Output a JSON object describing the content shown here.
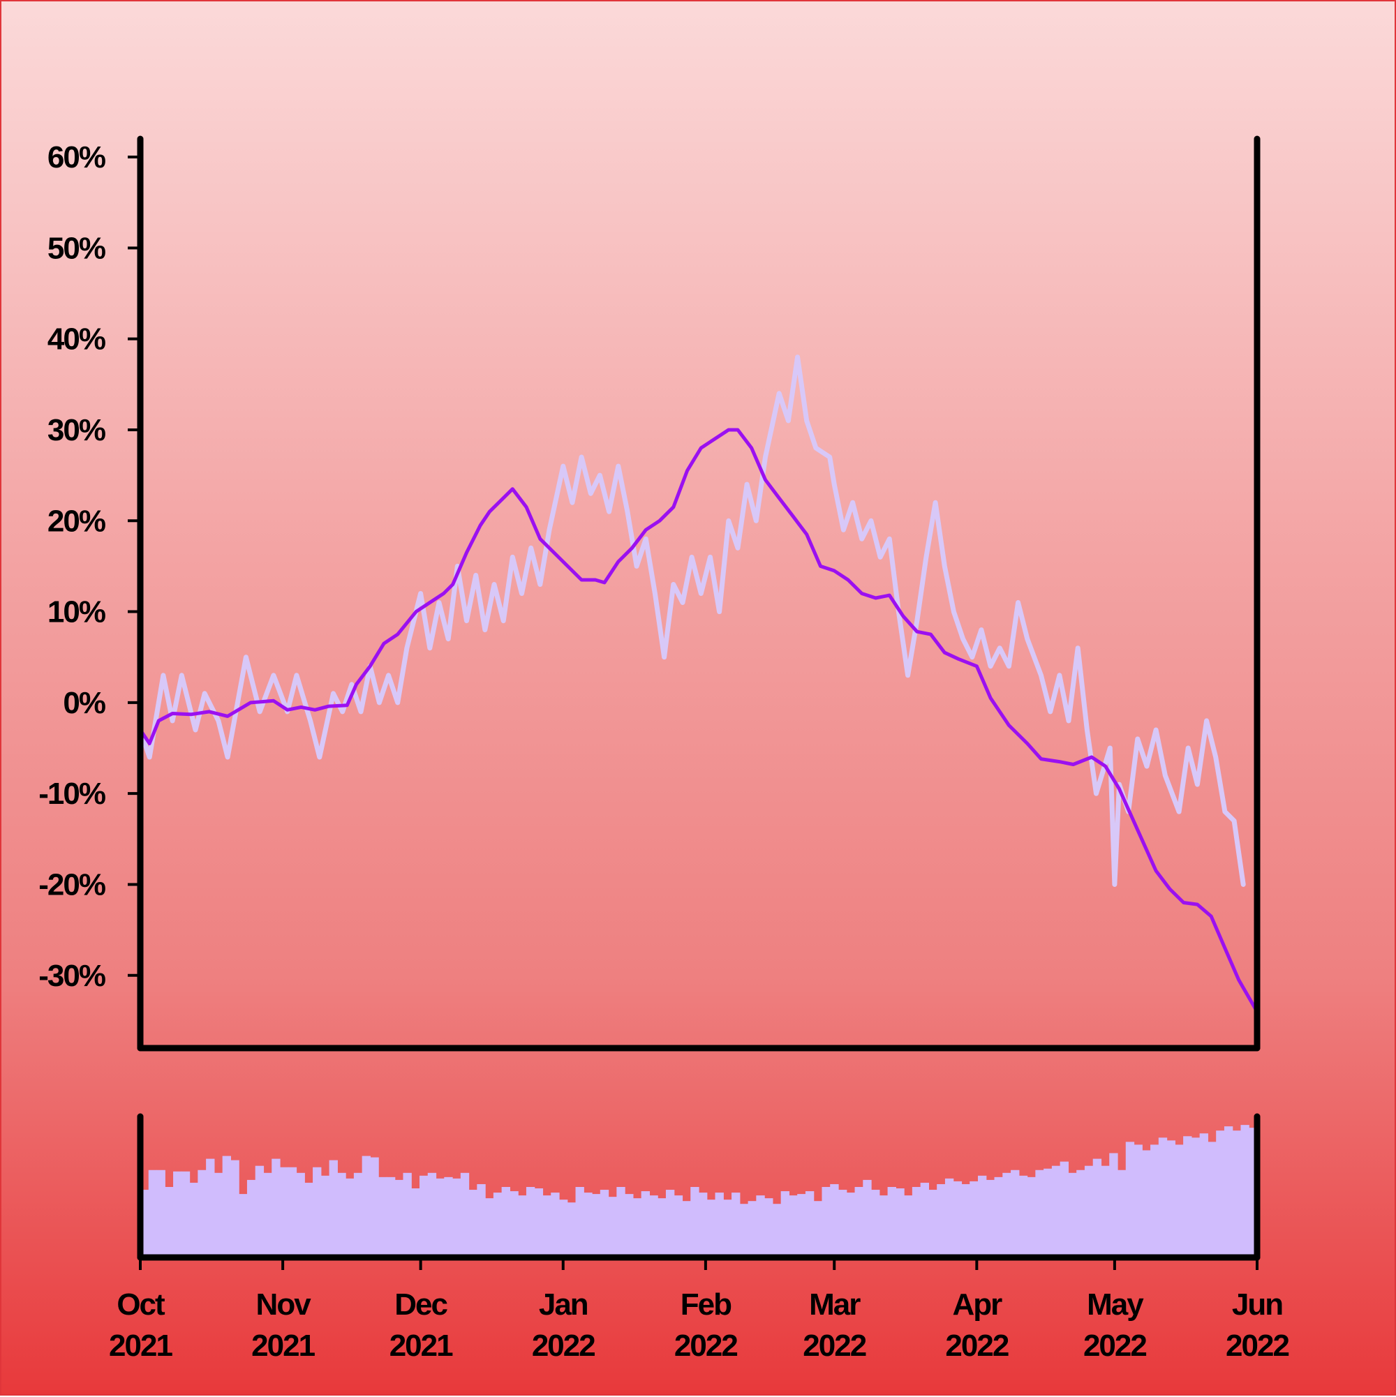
{
  "chart_data": {
    "type": "line",
    "title": "",
    "xlabel": "",
    "ylabel": "",
    "x_range": [
      "2021-10-01",
      "2022-06-01"
    ],
    "ylim": [
      -38,
      62
    ],
    "y_ticks": [
      {
        "value": 60,
        "label": "60%"
      },
      {
        "value": 50,
        "label": "50%"
      },
      {
        "value": 40,
        "label": "40%"
      },
      {
        "value": 30,
        "label": "30%"
      },
      {
        "value": 20,
        "label": "20%"
      },
      {
        "value": 10,
        "label": "10%"
      },
      {
        "value": 0,
        "label": "0%"
      },
      {
        "value": -10,
        "label": "-10%"
      },
      {
        "value": -20,
        "label": "-20%"
      },
      {
        "value": -30,
        "label": "-30%"
      }
    ],
    "x_ticks": [
      {
        "date": "2021-10-01",
        "month": "Oct",
        "year": "2021"
      },
      {
        "date": "2021-11-01",
        "month": "Nov",
        "year": "2021"
      },
      {
        "date": "2021-12-01",
        "month": "Dec",
        "year": "2021"
      },
      {
        "date": "2022-01-01",
        "month": "Jan",
        "year": "2022"
      },
      {
        "date": "2022-02-01",
        "month": "Feb",
        "year": "2022"
      },
      {
        "date": "2022-03-01",
        "month": "Mar",
        "year": "2022"
      },
      {
        "date": "2022-04-01",
        "month": "Apr",
        "year": "2022"
      },
      {
        "date": "2022-05-01",
        "month": "May",
        "year": "2022"
      },
      {
        "date": "2022-06-01",
        "month": "Jun",
        "year": "2022"
      }
    ],
    "series": [
      {
        "color": "#d8c8f8",
        "points": [
          [
            "2021-10-01",
            -3
          ],
          [
            "2021-10-03",
            -6
          ],
          [
            "2021-10-06",
            3
          ],
          [
            "2021-10-08",
            -2
          ],
          [
            "2021-10-10",
            3
          ],
          [
            "2021-10-13",
            -3
          ],
          [
            "2021-10-15",
            1
          ],
          [
            "2021-10-18",
            -2
          ],
          [
            "2021-10-20",
            -6
          ],
          [
            "2021-10-24",
            5
          ],
          [
            "2021-10-27",
            -1
          ],
          [
            "2021-10-30",
            3
          ],
          [
            "2021-11-02",
            -1
          ],
          [
            "2021-11-04",
            3
          ],
          [
            "2021-11-07",
            -2
          ],
          [
            "2021-11-09",
            -6
          ],
          [
            "2021-11-12",
            1
          ],
          [
            "2021-11-14",
            -1
          ],
          [
            "2021-11-16",
            2
          ],
          [
            "2021-11-18",
            -1
          ],
          [
            "2021-11-20",
            4
          ],
          [
            "2021-11-22",
            0
          ],
          [
            "2021-11-24",
            3
          ],
          [
            "2021-11-26",
            0
          ],
          [
            "2021-11-28",
            6
          ],
          [
            "2021-12-01",
            12
          ],
          [
            "2021-12-03",
            6
          ],
          [
            "2021-12-05",
            11
          ],
          [
            "2021-12-07",
            7
          ],
          [
            "2021-12-09",
            15
          ],
          [
            "2021-12-11",
            9
          ],
          [
            "2021-12-13",
            14
          ],
          [
            "2021-12-15",
            8
          ],
          [
            "2021-12-17",
            13
          ],
          [
            "2021-12-19",
            9
          ],
          [
            "2021-12-21",
            16
          ],
          [
            "2021-12-23",
            12
          ],
          [
            "2021-12-25",
            17
          ],
          [
            "2021-12-27",
            13
          ],
          [
            "2021-12-29",
            19
          ],
          [
            "2022-01-01",
            26
          ],
          [
            "2022-01-03",
            22
          ],
          [
            "2022-01-05",
            27
          ],
          [
            "2022-01-07",
            23
          ],
          [
            "2022-01-09",
            25
          ],
          [
            "2022-01-11",
            21
          ],
          [
            "2022-01-13",
            26
          ],
          [
            "2022-01-15",
            21
          ],
          [
            "2022-01-17",
            15
          ],
          [
            "2022-01-19",
            18
          ],
          [
            "2022-01-21",
            12
          ],
          [
            "2022-01-23",
            5
          ],
          [
            "2022-01-25",
            13
          ],
          [
            "2022-01-27",
            11
          ],
          [
            "2022-01-29",
            16
          ],
          [
            "2022-01-31",
            12
          ],
          [
            "2022-02-02",
            16
          ],
          [
            "2022-02-04",
            10
          ],
          [
            "2022-02-06",
            20
          ],
          [
            "2022-02-08",
            17
          ],
          [
            "2022-02-10",
            24
          ],
          [
            "2022-02-12",
            20
          ],
          [
            "2022-02-14",
            27
          ],
          [
            "2022-02-17",
            34
          ],
          [
            "2022-02-19",
            31
          ],
          [
            "2022-02-21",
            38
          ],
          [
            "2022-02-23",
            31
          ],
          [
            "2022-02-25",
            28
          ],
          [
            "2022-02-28",
            27
          ],
          [
            "2022-03-01",
            24
          ],
          [
            "2022-03-03",
            19
          ],
          [
            "2022-03-05",
            22
          ],
          [
            "2022-03-07",
            18
          ],
          [
            "2022-03-09",
            20
          ],
          [
            "2022-03-11",
            16
          ],
          [
            "2022-03-13",
            18
          ],
          [
            "2022-03-15",
            10
          ],
          [
            "2022-03-17",
            3
          ],
          [
            "2022-03-19",
            9
          ],
          [
            "2022-03-21",
            16
          ],
          [
            "2022-03-23",
            22
          ],
          [
            "2022-03-25",
            15
          ],
          [
            "2022-03-27",
            10
          ],
          [
            "2022-03-29",
            7
          ],
          [
            "2022-03-31",
            5
          ],
          [
            "2022-04-02",
            8
          ],
          [
            "2022-04-04",
            4
          ],
          [
            "2022-04-06",
            6
          ],
          [
            "2022-04-08",
            4
          ],
          [
            "2022-04-10",
            11
          ],
          [
            "2022-04-12",
            7
          ],
          [
            "2022-04-15",
            3
          ],
          [
            "2022-04-17",
            -1
          ],
          [
            "2022-04-19",
            3
          ],
          [
            "2022-04-21",
            -2
          ],
          [
            "2022-04-23",
            6
          ],
          [
            "2022-04-25",
            -3
          ],
          [
            "2022-04-27",
            -10
          ],
          [
            "2022-04-30",
            -5
          ],
          [
            "2022-05-02",
            -9
          ],
          [
            "2022-05-04",
            -12
          ],
          [
            "2022-05-06",
            -4
          ],
          [
            "2022-05-08",
            -7
          ],
          [
            "2022-05-10",
            -3
          ],
          [
            "2022-05-12",
            -8
          ],
          [
            "2022-05-15",
            -12
          ],
          [
            "2022-05-17",
            -5
          ],
          [
            "2022-05-19",
            -9
          ],
          [
            "2022-05-21",
            -2
          ],
          [
            "2022-05-23",
            -6
          ],
          [
            "2022-05-25",
            -12
          ],
          [
            "2022-05-27",
            -13
          ],
          [
            "2022-05-29",
            -20
          ],
          [
            "2022-05-01",
            -20
          ]
        ]
      },
      {
        "color": "#9b10f0",
        "points": [
          [
            "2021-10-01",
            -3
          ],
          [
            "2021-10-03",
            -4.5
          ],
          [
            "2021-10-05",
            -2
          ],
          [
            "2021-10-08",
            -1.2
          ],
          [
            "2021-10-12",
            -1.3
          ],
          [
            "2021-10-16",
            -1
          ],
          [
            "2021-10-20",
            -1.5
          ],
          [
            "2021-10-25",
            0
          ],
          [
            "2021-10-30",
            0.2
          ],
          [
            "2021-11-02",
            -0.8
          ],
          [
            "2021-11-05",
            -0.5
          ],
          [
            "2021-11-08",
            -0.8
          ],
          [
            "2021-11-11",
            -0.4
          ],
          [
            "2021-11-15",
            -0.3
          ],
          [
            "2021-11-17",
            2
          ],
          [
            "2021-11-20",
            4
          ],
          [
            "2021-11-23",
            6.5
          ],
          [
            "2021-11-26",
            7.5
          ],
          [
            "2021-11-30",
            10
          ],
          [
            "2021-12-03",
            11
          ],
          [
            "2021-12-06",
            12
          ],
          [
            "2021-12-08",
            13
          ],
          [
            "2021-12-11",
            16.5
          ],
          [
            "2021-12-14",
            19.5
          ],
          [
            "2021-12-16",
            21
          ],
          [
            "2021-12-19",
            22.5
          ],
          [
            "2021-12-21",
            23.5
          ],
          [
            "2021-12-24",
            21.5
          ],
          [
            "2021-12-27",
            18
          ],
          [
            "2021-12-30",
            16.5
          ],
          [
            "2022-01-02",
            15
          ],
          [
            "2022-01-05",
            13.5
          ],
          [
            "2022-01-08",
            13.5
          ],
          [
            "2022-01-10",
            13.2
          ],
          [
            "2022-01-13",
            15.5
          ],
          [
            "2022-01-16",
            17
          ],
          [
            "2022-01-19",
            19
          ],
          [
            "2022-01-22",
            20
          ],
          [
            "2022-01-25",
            21.5
          ],
          [
            "2022-01-28",
            25.5
          ],
          [
            "2022-01-31",
            28
          ],
          [
            "2022-02-03",
            29
          ],
          [
            "2022-02-06",
            30
          ],
          [
            "2022-02-08",
            30
          ],
          [
            "2022-02-11",
            28
          ],
          [
            "2022-02-14",
            24.5
          ],
          [
            "2022-02-17",
            22.5
          ],
          [
            "2022-02-20",
            20.5
          ],
          [
            "2022-02-23",
            18.5
          ],
          [
            "2022-02-26",
            15
          ],
          [
            "2022-03-01",
            14.5
          ],
          [
            "2022-03-04",
            13.5
          ],
          [
            "2022-03-07",
            12
          ],
          [
            "2022-03-10",
            11.5
          ],
          [
            "2022-03-13",
            11.8
          ],
          [
            "2022-03-16",
            9.5
          ],
          [
            "2022-03-19",
            7.8
          ],
          [
            "2022-03-22",
            7.5
          ],
          [
            "2022-03-25",
            5.5
          ],
          [
            "2022-03-28",
            4.8
          ],
          [
            "2022-04-01",
            4
          ],
          [
            "2022-04-04",
            0.5
          ],
          [
            "2022-04-08",
            -2.5
          ],
          [
            "2022-04-12",
            -4.5
          ],
          [
            "2022-04-15",
            -6.2
          ],
          [
            "2022-04-19",
            -6.5
          ],
          [
            "2022-04-22",
            -6.8
          ],
          [
            "2022-04-26",
            -6
          ],
          [
            "2022-04-29",
            -7
          ],
          [
            "2022-05-02",
            -9.5
          ],
          [
            "2022-05-06",
            -14
          ],
          [
            "2022-05-10",
            -18.5
          ],
          [
            "2022-05-13",
            -20.5
          ],
          [
            "2022-05-16",
            -22
          ],
          [
            "2022-05-19",
            -22.2
          ],
          [
            "2022-05-22",
            -23.5
          ],
          [
            "2022-05-25",
            -27
          ],
          [
            "2022-05-28",
            -30.5
          ],
          [
            "2022-06-01",
            -34
          ]
        ]
      }
    ],
    "volume": {
      "color": "#d0bcfd",
      "values": [
        0.48,
        0.62,
        0.62,
        0.5,
        0.61,
        0.61,
        0.53,
        0.62,
        0.7,
        0.6,
        0.72,
        0.69,
        0.45,
        0.55,
        0.65,
        0.6,
        0.7,
        0.64,
        0.64,
        0.6,
        0.53,
        0.64,
        0.58,
        0.69,
        0.6,
        0.56,
        0.6,
        0.72,
        0.71,
        0.57,
        0.57,
        0.55,
        0.6,
        0.49,
        0.58,
        0.6,
        0.56,
        0.57,
        0.56,
        0.6,
        0.48,
        0.52,
        0.42,
        0.46,
        0.5,
        0.47,
        0.44,
        0.5,
        0.49,
        0.44,
        0.46,
        0.41,
        0.39,
        0.5,
        0.46,
        0.45,
        0.48,
        0.43,
        0.5,
        0.45,
        0.42,
        0.47,
        0.44,
        0.42,
        0.48,
        0.44,
        0.4,
        0.5,
        0.46,
        0.41,
        0.46,
        0.41,
        0.46,
        0.38,
        0.4,
        0.44,
        0.42,
        0.38,
        0.47,
        0.44,
        0.45,
        0.47,
        0.4,
        0.5,
        0.52,
        0.48,
        0.46,
        0.5,
        0.55,
        0.48,
        0.44,
        0.5,
        0.49,
        0.44,
        0.5,
        0.53,
        0.48,
        0.52,
        0.56,
        0.54,
        0.52,
        0.54,
        0.58,
        0.55,
        0.57,
        0.6,
        0.62,
        0.58,
        0.57,
        0.62,
        0.63,
        0.65,
        0.68,
        0.6,
        0.62,
        0.65,
        0.7,
        0.65,
        0.74,
        0.62,
        0.82,
        0.8,
        0.76,
        0.8,
        0.85,
        0.83,
        0.8,
        0.86,
        0.85,
        0.88,
        0.82,
        0.9,
        0.93,
        0.9,
        0.94,
        0.92
      ]
    }
  }
}
